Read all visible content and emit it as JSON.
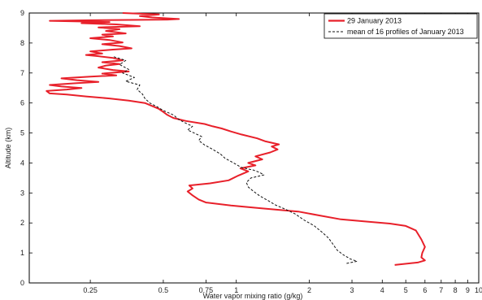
{
  "chart_data": {
    "type": "line",
    "title": "",
    "xlabel": "Water vapor mixing ratio (g/kg)",
    "ylabel": "Altitude (km)",
    "x_scale": "log",
    "xlim": [
      0.14,
      10
    ],
    "ylim": [
      0,
      9
    ],
    "x_ticks": [
      0.25,
      0.5,
      0.75,
      1,
      2,
      3,
      4,
      5,
      6,
      7,
      8,
      9,
      10
    ],
    "x_tick_labels": [
      "0.25",
      "0.5",
      "0.75",
      "1",
      "2",
      "3",
      "4",
      "5",
      "6",
      "7",
      "8",
      "9",
      "10"
    ],
    "y_ticks": [
      0,
      1,
      2,
      3,
      4,
      5,
      6,
      7,
      8,
      9
    ],
    "y_tick_labels": [
      "0",
      "1",
      "2",
      "3",
      "4",
      "5",
      "6",
      "7",
      "8",
      "9"
    ],
    "grid": false,
    "legend_position": "top-right",
    "series": [
      {
        "name": "29 January 2013",
        "color": "#e8202a",
        "style": "solid",
        "points": [
          [
            4.5,
            0.6
          ],
          [
            5.6,
            0.68
          ],
          [
            6.0,
            0.75
          ],
          [
            5.8,
            0.85
          ],
          [
            5.85,
            1.0
          ],
          [
            6.0,
            1.2
          ],
          [
            5.8,
            1.45
          ],
          [
            5.5,
            1.75
          ],
          [
            5.0,
            1.9
          ],
          [
            4.3,
            1.98
          ],
          [
            3.4,
            2.05
          ],
          [
            2.7,
            2.12
          ],
          [
            2.2,
            2.25
          ],
          [
            1.8,
            2.38
          ],
          [
            1.3,
            2.48
          ],
          [
            0.95,
            2.58
          ],
          [
            0.75,
            2.68
          ],
          [
            0.7,
            2.78
          ],
          [
            0.66,
            2.92
          ],
          [
            0.63,
            3.05
          ],
          [
            0.66,
            3.15
          ],
          [
            0.64,
            3.25
          ],
          [
            0.78,
            3.32
          ],
          [
            0.93,
            3.42
          ],
          [
            1.02,
            3.58
          ],
          [
            1.12,
            3.72
          ],
          [
            1.04,
            3.82
          ],
          [
            1.2,
            3.92
          ],
          [
            1.12,
            4.0
          ],
          [
            1.28,
            4.12
          ],
          [
            1.2,
            4.22
          ],
          [
            1.38,
            4.35
          ],
          [
            1.48,
            4.45
          ],
          [
            1.4,
            4.55
          ],
          [
            1.5,
            4.62
          ],
          [
            1.32,
            4.72
          ],
          [
            1.22,
            4.82
          ],
          [
            1.05,
            4.95
          ],
          [
            0.95,
            5.05
          ],
          [
            0.87,
            5.15
          ],
          [
            0.8,
            5.22
          ],
          [
            0.74,
            5.3
          ],
          [
            0.62,
            5.4
          ],
          [
            0.55,
            5.5
          ],
          [
            0.52,
            5.6
          ],
          [
            0.5,
            5.7
          ],
          [
            0.48,
            5.8
          ],
          [
            0.45,
            5.9
          ],
          [
            0.42,
            6.0
          ],
          [
            0.36,
            6.08
          ],
          [
            0.3,
            6.15
          ],
          [
            0.24,
            6.22
          ],
          [
            0.2,
            6.28
          ],
          [
            0.17,
            6.32
          ],
          [
            0.165,
            6.4
          ],
          [
            0.2,
            6.45
          ],
          [
            0.23,
            6.5
          ],
          [
            0.19,
            6.55
          ],
          [
            0.17,
            6.6
          ],
          [
            0.22,
            6.66
          ],
          [
            0.27,
            6.7
          ],
          [
            0.22,
            6.76
          ],
          [
            0.19,
            6.82
          ],
          [
            0.25,
            6.88
          ],
          [
            0.32,
            6.92
          ],
          [
            0.28,
            6.98
          ],
          [
            0.36,
            7.05
          ],
          [
            0.31,
            7.1
          ],
          [
            0.27,
            7.18
          ],
          [
            0.29,
            7.25
          ],
          [
            0.33,
            7.3
          ],
          [
            0.28,
            7.36
          ],
          [
            0.34,
            7.42
          ],
          [
            0.31,
            7.5
          ],
          [
            0.27,
            7.56
          ],
          [
            0.24,
            7.6
          ],
          [
            0.28,
            7.65
          ],
          [
            0.25,
            7.72
          ],
          [
            0.31,
            7.78
          ],
          [
            0.37,
            7.82
          ],
          [
            0.33,
            7.9
          ],
          [
            0.28,
            7.96
          ],
          [
            0.34,
            8.02
          ],
          [
            0.3,
            8.1
          ],
          [
            0.25,
            8.16
          ],
          [
            0.31,
            8.22
          ],
          [
            0.28,
            8.28
          ],
          [
            0.35,
            8.32
          ],
          [
            0.29,
            8.4
          ],
          [
            0.33,
            8.46
          ],
          [
            0.27,
            8.52
          ],
          [
            0.4,
            8.56
          ],
          [
            0.32,
            8.62
          ],
          [
            0.23,
            8.66
          ],
          [
            0.3,
            8.7
          ],
          [
            0.17,
            8.74
          ],
          [
            0.25,
            8.76
          ],
          [
            0.52,
            8.78
          ],
          [
            0.58,
            8.8
          ],
          [
            0.45,
            8.85
          ],
          [
            0.4,
            8.9
          ],
          [
            0.48,
            8.95
          ],
          [
            0.34,
            9.0
          ]
        ]
      },
      {
        "name": "mean of 16 profiles of January 2013",
        "color": "#111111",
        "style": "dashed",
        "points": [
          [
            2.85,
            0.65
          ],
          [
            3.15,
            0.72
          ],
          [
            2.95,
            0.8
          ],
          [
            2.75,
            0.95
          ],
          [
            2.6,
            1.1
          ],
          [
            2.5,
            1.3
          ],
          [
            2.4,
            1.5
          ],
          [
            2.25,
            1.7
          ],
          [
            2.1,
            1.9
          ],
          [
            1.9,
            2.1
          ],
          [
            1.75,
            2.3
          ],
          [
            1.6,
            2.45
          ],
          [
            1.45,
            2.6
          ],
          [
            1.35,
            2.75
          ],
          [
            1.25,
            2.9
          ],
          [
            1.18,
            3.05
          ],
          [
            1.12,
            3.2
          ],
          [
            1.1,
            3.35
          ],
          [
            1.15,
            3.5
          ],
          [
            1.3,
            3.6
          ],
          [
            1.25,
            3.68
          ],
          [
            1.18,
            3.76
          ],
          [
            1.05,
            3.85
          ],
          [
            1.0,
            3.95
          ],
          [
            0.95,
            4.05
          ],
          [
            0.9,
            4.15
          ],
          [
            0.86,
            4.3
          ],
          [
            0.8,
            4.45
          ],
          [
            0.74,
            4.6
          ],
          [
            0.7,
            4.75
          ],
          [
            0.72,
            4.88
          ],
          [
            0.67,
            5.0
          ],
          [
            0.63,
            5.1
          ],
          [
            0.66,
            5.22
          ],
          [
            0.61,
            5.35
          ],
          [
            0.58,
            5.45
          ],
          [
            0.55,
            5.6
          ],
          [
            0.5,
            5.75
          ],
          [
            0.47,
            5.88
          ],
          [
            0.44,
            6.0
          ],
          [
            0.42,
            6.15
          ],
          [
            0.41,
            6.3
          ],
          [
            0.39,
            6.45
          ],
          [
            0.4,
            6.6
          ],
          [
            0.35,
            6.72
          ],
          [
            0.38,
            6.85
          ],
          [
            0.34,
            7.0
          ],
          [
            0.36,
            7.12
          ],
          [
            0.33,
            7.28
          ],
          [
            0.35,
            7.42
          ],
          [
            0.31,
            7.55
          ]
        ]
      }
    ]
  }
}
